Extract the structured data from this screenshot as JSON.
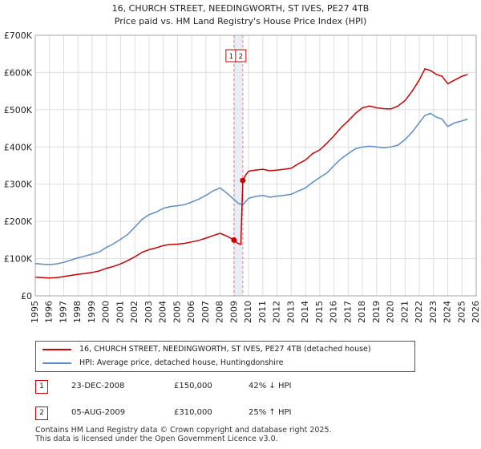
{
  "chart_data": {
    "type": "line",
    "title": "16, CHURCH STREET, NEEDINGWORTH, ST IVES, PE27 4TB",
    "subtitle": "Price paid vs. HM Land Registry's House Price Index (HPI)",
    "xlabel": "",
    "ylabel": "",
    "xlim": [
      1995,
      2026
    ],
    "ylim": [
      0,
      700000
    ],
    "y_ticks": [
      0,
      100000,
      200000,
      300000,
      400000,
      500000,
      600000,
      700000
    ],
    "y_tick_labels": [
      "£0",
      "£100K",
      "£200K",
      "£300K",
      "£400K",
      "£500K",
      "£600K",
      "£700K"
    ],
    "x_ticks": [
      1995,
      1996,
      1997,
      1998,
      1999,
      2000,
      2001,
      2002,
      2003,
      2004,
      2005,
      2006,
      2007,
      2008,
      2009,
      2010,
      2011,
      2012,
      2013,
      2014,
      2015,
      2016,
      2017,
      2018,
      2019,
      2020,
      2021,
      2022,
      2023,
      2024,
      2025,
      2026
    ],
    "grid": true,
    "colors": {
      "property": "#cc0000",
      "hpi": "#5b8ec9",
      "grid": "#dddddd",
      "highlight": "#e8eef8",
      "marker_line": "#e08080"
    },
    "series": [
      {
        "name": "16, CHURCH STREET, NEEDINGWORTH, ST IVES, PE27 4TB (detached house)",
        "x": [
          1995.0,
          1995.5,
          1996.0,
          1996.5,
          1997.0,
          1997.5,
          1998.0,
          1998.5,
          1999.0,
          1999.5,
          2000.0,
          2000.5,
          2001.0,
          2001.5,
          2002.0,
          2002.5,
          2003.0,
          2003.5,
          2004.0,
          2004.5,
          2005.0,
          2005.5,
          2006.0,
          2006.5,
          2007.0,
          2007.5,
          2008.0,
          2008.5,
          2008.97,
          2009.2,
          2009.45,
          2009.59,
          2009.8,
          2010.0,
          2010.5,
          2011.0,
          2011.5,
          2012.0,
          2012.5,
          2013.0,
          2013.5,
          2014.0,
          2014.5,
          2015.0,
          2015.5,
          2016.0,
          2016.5,
          2017.0,
          2017.5,
          2018.0,
          2018.5,
          2019.0,
          2019.5,
          2020.0,
          2020.5,
          2021.0,
          2021.5,
          2022.0,
          2022.4,
          2022.8,
          2023.2,
          2023.6,
          2024.0,
          2024.5,
          2025.0,
          2025.4
        ],
        "values": [
          50000,
          49000,
          48000,
          49000,
          52000,
          55000,
          58000,
          60000,
          63000,
          67000,
          74000,
          79000,
          86000,
          95000,
          105000,
          117000,
          124000,
          129000,
          135000,
          138000,
          139000,
          141000,
          145000,
          149000,
          155000,
          162000,
          168000,
          160000,
          150000,
          142000,
          138000,
          310000,
          325000,
          335000,
          338000,
          340000,
          336000,
          338000,
          340000,
          343000,
          355000,
          365000,
          382000,
          392000,
          410000,
          430000,
          452000,
          470000,
          490000,
          505000,
          510000,
          505000,
          503000,
          502000,
          510000,
          525000,
          550000,
          580000,
          610000,
          605000,
          595000,
          590000,
          570000,
          580000,
          590000,
          595000
        ]
      },
      {
        "name": "HPI: Average price, detached house, Huntingdonshire",
        "x": [
          1995.0,
          1995.5,
          1996.0,
          1996.5,
          1997.0,
          1997.5,
          1998.0,
          1998.5,
          1999.0,
          1999.5,
          2000.0,
          2000.5,
          2001.0,
          2001.5,
          2002.0,
          2002.5,
          2003.0,
          2003.5,
          2004.0,
          2004.5,
          2005.0,
          2005.5,
          2006.0,
          2006.5,
          2007.0,
          2007.5,
          2008.0,
          2008.5,
          2009.0,
          2009.3,
          2009.6,
          2010.0,
          2010.5,
          2011.0,
          2011.5,
          2012.0,
          2012.5,
          2013.0,
          2013.5,
          2014.0,
          2014.5,
          2015.0,
          2015.5,
          2016.0,
          2016.5,
          2017.0,
          2017.5,
          2018.0,
          2018.5,
          2019.0,
          2019.5,
          2020.0,
          2020.5,
          2021.0,
          2021.5,
          2022.0,
          2022.4,
          2022.8,
          2023.2,
          2023.6,
          2024.0,
          2024.5,
          2025.0,
          2025.4
        ],
        "values": [
          87000,
          85000,
          84000,
          86000,
          90000,
          96000,
          102000,
          107000,
          112000,
          118000,
          130000,
          140000,
          152000,
          165000,
          185000,
          205000,
          218000,
          225000,
          235000,
          240000,
          242000,
          245000,
          252000,
          260000,
          270000,
          282000,
          290000,
          275000,
          258000,
          248000,
          245000,
          262000,
          267000,
          270000,
          265000,
          268000,
          270000,
          273000,
          282000,
          290000,
          305000,
          318000,
          330000,
          350000,
          368000,
          382000,
          395000,
          400000,
          402000,
          400000,
          398000,
          400000,
          405000,
          420000,
          440000,
          465000,
          485000,
          490000,
          480000,
          475000,
          455000,
          465000,
          470000,
          475000
        ]
      }
    ],
    "markers": [
      {
        "label": "1",
        "x": 2008.97,
        "y": 150000
      },
      {
        "label": "2",
        "x": 2009.59,
        "y": 310000
      }
    ]
  },
  "legend": {
    "property": "16, CHURCH STREET, NEEDINGWORTH, ST IVES, PE27 4TB (detached house)",
    "hpi": "HPI: Average price, detached house, Huntingdonshire"
  },
  "sales": [
    {
      "num": "1",
      "date": "23-DEC-2008",
      "price": "£150,000",
      "hpi": "42% ↓ HPI"
    },
    {
      "num": "2",
      "date": "05-AUG-2009",
      "price": "£310,000",
      "hpi": "25% ↑ HPI"
    }
  ],
  "footer": {
    "line1": "Contains HM Land Registry data © Crown copyright and database right 2025.",
    "line2": "This data is licensed under the Open Government Licence v3.0."
  }
}
